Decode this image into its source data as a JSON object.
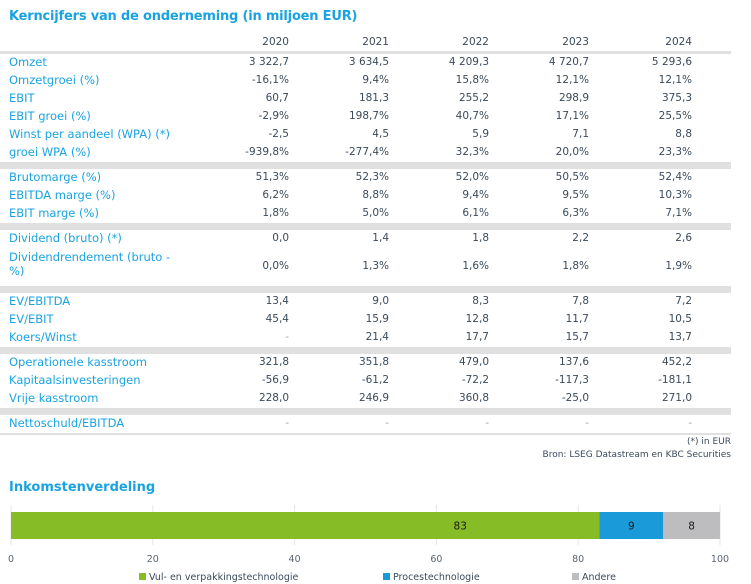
{
  "title": "Kerncijfers van de onderneming (in miljoen EUR)",
  "years": [
    "2020",
    "2021",
    "2022",
    "2023",
    "2024"
  ],
  "groups": [
    {
      "rows": [
        {
          "label": "Omzet",
          "values": [
            "3 322,7",
            "3 634,5",
            "4 209,3",
            "4 720,7",
            "5 293,6"
          ]
        },
        {
          "label": "Omzetgroei (%)",
          "values": [
            "-16,1%",
            "9,4%",
            "15,8%",
            "12,1%",
            "12,1%"
          ]
        },
        {
          "label": "EBIT",
          "values": [
            "60,7",
            "181,3",
            "255,2",
            "298,9",
            "375,3"
          ]
        },
        {
          "label": "EBIT groei (%)",
          "values": [
            "-2,9%",
            "198,7%",
            "40,7%",
            "17,1%",
            "25,5%"
          ]
        },
        {
          "label": "Winst per aandeel (WPA) (*)",
          "values": [
            "-2,5",
            "4,5",
            "5,9",
            "7,1",
            "8,8"
          ]
        },
        {
          "label": "groei WPA (%)",
          "values": [
            "-939,8%",
            "-277,4%",
            "32,3%",
            "20,0%",
            "23,3%"
          ]
        }
      ]
    },
    {
      "rows": [
        {
          "label": "Brutomarge (%)",
          "values": [
            "51,3%",
            "52,3%",
            "52,0%",
            "50,5%",
            "52,4%"
          ]
        },
        {
          "label": "EBITDA marge (%)",
          "values": [
            "6,2%",
            "8,8%",
            "9,4%",
            "9,5%",
            "10,3%"
          ]
        },
        {
          "label": "EBIT marge (%)",
          "values": [
            "1,8%",
            "5,0%",
            "6,1%",
            "6,3%",
            "7,1%"
          ]
        }
      ]
    },
    {
      "rows": [
        {
          "label": "Dividend (bruto) (*)",
          "values": [
            "0,0",
            "1,4",
            "1,8",
            "2,2",
            "2,6"
          ]
        },
        {
          "label": "Dividendrendement (bruto - %)",
          "values": [
            "0,0%",
            "1,3%",
            "1,6%",
            "1,8%",
            "1,9%"
          ],
          "tall": true
        }
      ]
    },
    {
      "rows": [
        {
          "label": "EV/EBITDA",
          "values": [
            "13,4",
            "9,0",
            "8,3",
            "7,8",
            "7,2"
          ]
        },
        {
          "label": "EV/EBIT",
          "values": [
            "45,4",
            "15,9",
            "12,8",
            "11,7",
            "10,5"
          ]
        },
        {
          "label": "Koers/Winst",
          "values": [
            "-",
            "21,4",
            "17,7",
            "15,7",
            "13,7"
          ]
        }
      ]
    },
    {
      "rows": [
        {
          "label": "Operationele kasstroom",
          "values": [
            "321,8",
            "351,8",
            "479,0",
            "137,6",
            "452,2"
          ]
        },
        {
          "label": "Kapitaalsinvesteringen",
          "values": [
            "-56,9",
            "-61,2",
            "-72,2",
            "-117,3",
            "-181,1"
          ]
        },
        {
          "label": "Vrije kasstroom",
          "values": [
            "228,0",
            "246,9",
            "360,8",
            "-25,0",
            "271,0"
          ]
        }
      ]
    },
    {
      "rows": [
        {
          "label": "Nettoschuld/EBITDA",
          "values": [
            "-",
            "-",
            "-",
            "-",
            "-"
          ]
        }
      ]
    }
  ],
  "notes": {
    "footnote": "(*) in EUR",
    "source": "Bron: LSEG Datastream en KBC Securities"
  },
  "chart_data": {
    "type": "bar",
    "orientation": "horizontal-stacked",
    "title": "Inkomstenverdeling",
    "xlabel": "",
    "ylabel": "",
    "xlim": [
      0,
      100
    ],
    "x_ticks": [
      "0",
      "20",
      "40",
      "60",
      "80",
      "100"
    ],
    "grid": true,
    "legend_position": "bottom",
    "series": [
      {
        "name": "Vul- en verpakkingstechnologie",
        "value": 83,
        "color": "#86bc25"
      },
      {
        "name": "Procestechnologie",
        "value": 9,
        "color": "#1a9ad8"
      },
      {
        "name": "Andere",
        "value": 8,
        "color": "#bdbdc0"
      }
    ]
  }
}
